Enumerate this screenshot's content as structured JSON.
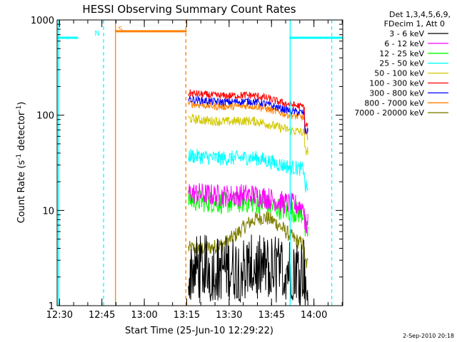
{
  "chart_data": {
    "type": "line",
    "title": "HESSI Observing Summary Count Rates",
    "xlabel": "Start Time (25-Jun-10 12:29:22)",
    "ylabel_main": "Count Rate (s",
    "ylabel_sup1": "-1",
    "ylabel_mid": " detector",
    "ylabel_sup2": "-1",
    "ylabel_end": ")",
    "x_range_min": [
      12.486,
      14.17
    ],
    "y_range": [
      1,
      1000
    ],
    "y_scale": "log",
    "x_ticks": [
      {
        "v": 12.5,
        "label": "12:30"
      },
      {
        "v": 12.75,
        "label": "12:45"
      },
      {
        "v": 13.0,
        "label": "13:00"
      },
      {
        "v": 13.25,
        "label": "13:15"
      },
      {
        "v": 13.5,
        "label": "13:30"
      },
      {
        "v": 13.75,
        "label": "13:45"
      },
      {
        "v": 14.0,
        "label": "14:00"
      }
    ],
    "y_ticks": [
      {
        "v": 1,
        "label": "1"
      },
      {
        "v": 10,
        "label": "10"
      },
      {
        "v": 100,
        "label": "100"
      },
      {
        "v": 1000,
        "label": "1000"
      }
    ],
    "legend": {
      "placement": "top-right",
      "header1": "Det 1,3,4,5,6,9,",
      "header2": "FDecim 1, Att 0"
    },
    "series": [
      {
        "name": "3 - 6 keV",
        "color": "#000000",
        "base": 2.5,
        "noise": 0.35
      },
      {
        "name": "6 - 12 keV",
        "color": "#ff00ff",
        "base": 13,
        "noise": 0.12
      },
      {
        "name": "12 - 25 keV",
        "color": "#00ff00",
        "base": 11,
        "noise": 0.12
      },
      {
        "name": "25 - 50 keV",
        "color": "#00ffff",
        "base": 32,
        "noise": 0.08
      },
      {
        "name": "50 - 100 keV",
        "color": "#d2c800",
        "base": 78,
        "noise": 0.05
      },
      {
        "name": "100 - 300 keV",
        "color": "#ff0000",
        "base": 145,
        "noise": 0.04
      },
      {
        "name": "300 - 800 keV",
        "color": "#0000ff",
        "base": 125,
        "noise": 0.04
      },
      {
        "name": "800 - 7000 keV",
        "color": "#ff8000",
        "base": 112,
        "noise": 0.04
      },
      {
        "name": "7000 - 20000 keV",
        "color": "#808000",
        "base": 4,
        "noise": 0.08
      }
    ],
    "data_window": [
      13.26,
      13.965
    ],
    "saa_segments": [
      {
        "x0": 12.486,
        "x1": 12.61,
        "y": 650,
        "color": "#00ffff"
      },
      {
        "x0": 13.855,
        "x1": 14.17,
        "y": 650,
        "color": "#00ffff"
      },
      {
        "x0": 12.83,
        "x1": 13.25,
        "y": 760,
        "color": "#ff8000"
      }
    ],
    "markers": [
      {
        "x": 12.495,
        "color": "#00ffff",
        "style": "solid"
      },
      {
        "x": 12.76,
        "color": "#00ffff",
        "style": "dashed",
        "label": "N"
      },
      {
        "x": 12.83,
        "color": "#ff8000",
        "style": "solid",
        "label": "S"
      },
      {
        "x": 13.245,
        "color": "#ff8000",
        "style": "dashed"
      },
      {
        "x": 13.86,
        "color": "#00ffff",
        "style": "solid"
      },
      {
        "x": 14.105,
        "color": "#00ffff",
        "style": "dashed"
      }
    ]
  },
  "footer_date": "2-Sep-2010 20:18"
}
